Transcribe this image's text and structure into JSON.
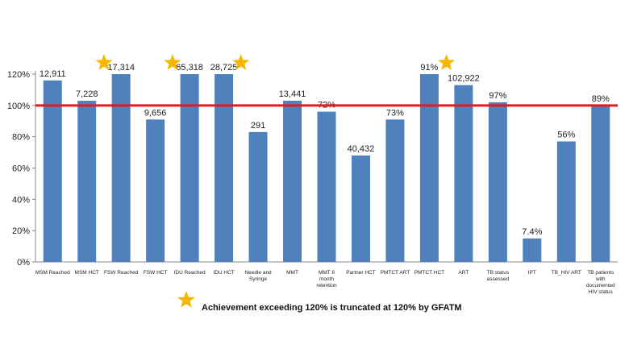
{
  "chart_data": {
    "type": "bar",
    "categories": [
      [
        "MSM Reached"
      ],
      [
        "MSM HCT"
      ],
      [
        "FSW Reached"
      ],
      [
        "FSW HCT"
      ],
      [
        "IDU Reached"
      ],
      [
        "IDU HCT"
      ],
      [
        "Needle and",
        "Syringe"
      ],
      [
        "MMT"
      ],
      [
        "MMT 6",
        "month",
        "retention"
      ],
      [
        "Partner HCT"
      ],
      [
        "PMTCT ART"
      ],
      [
        "PMTCT HCT"
      ],
      [
        "ART"
      ],
      [
        "TB status",
        "assessed"
      ],
      [
        "IPT"
      ],
      [
        "TB_HIV ART"
      ],
      [
        "TB patients",
        "with",
        "documented",
        "HIV status"
      ]
    ],
    "values": [
      116,
      103,
      120,
      91,
      120,
      120,
      83,
      103,
      96,
      68,
      91,
      120,
      113,
      102,
      15,
      77,
      100
    ],
    "data_labels": [
      "12,911",
      "7,228",
      "17,314",
      "9,656",
      "65,318",
      "28,725",
      "291",
      "13,441",
      "72%",
      "40,432",
      "73%",
      "91%",
      "102,922",
      "97%",
      "7.4%",
      "56%",
      "89%"
    ],
    "star_marks": [
      1,
      3,
      5,
      11
    ],
    "target_line": 100,
    "ylim": [
      0,
      120
    ],
    "yticks": [
      "0%",
      "20%",
      "40%",
      "60%",
      "80%",
      "100%",
      "120%"
    ],
    "bar_color": "#4f81bd",
    "target_color": "#e8191f",
    "star_color": "#f5b800"
  },
  "legend": {
    "icon": "star-icon",
    "text": "Achievement exceeding 120% is truncated at 120% by GFATM"
  }
}
